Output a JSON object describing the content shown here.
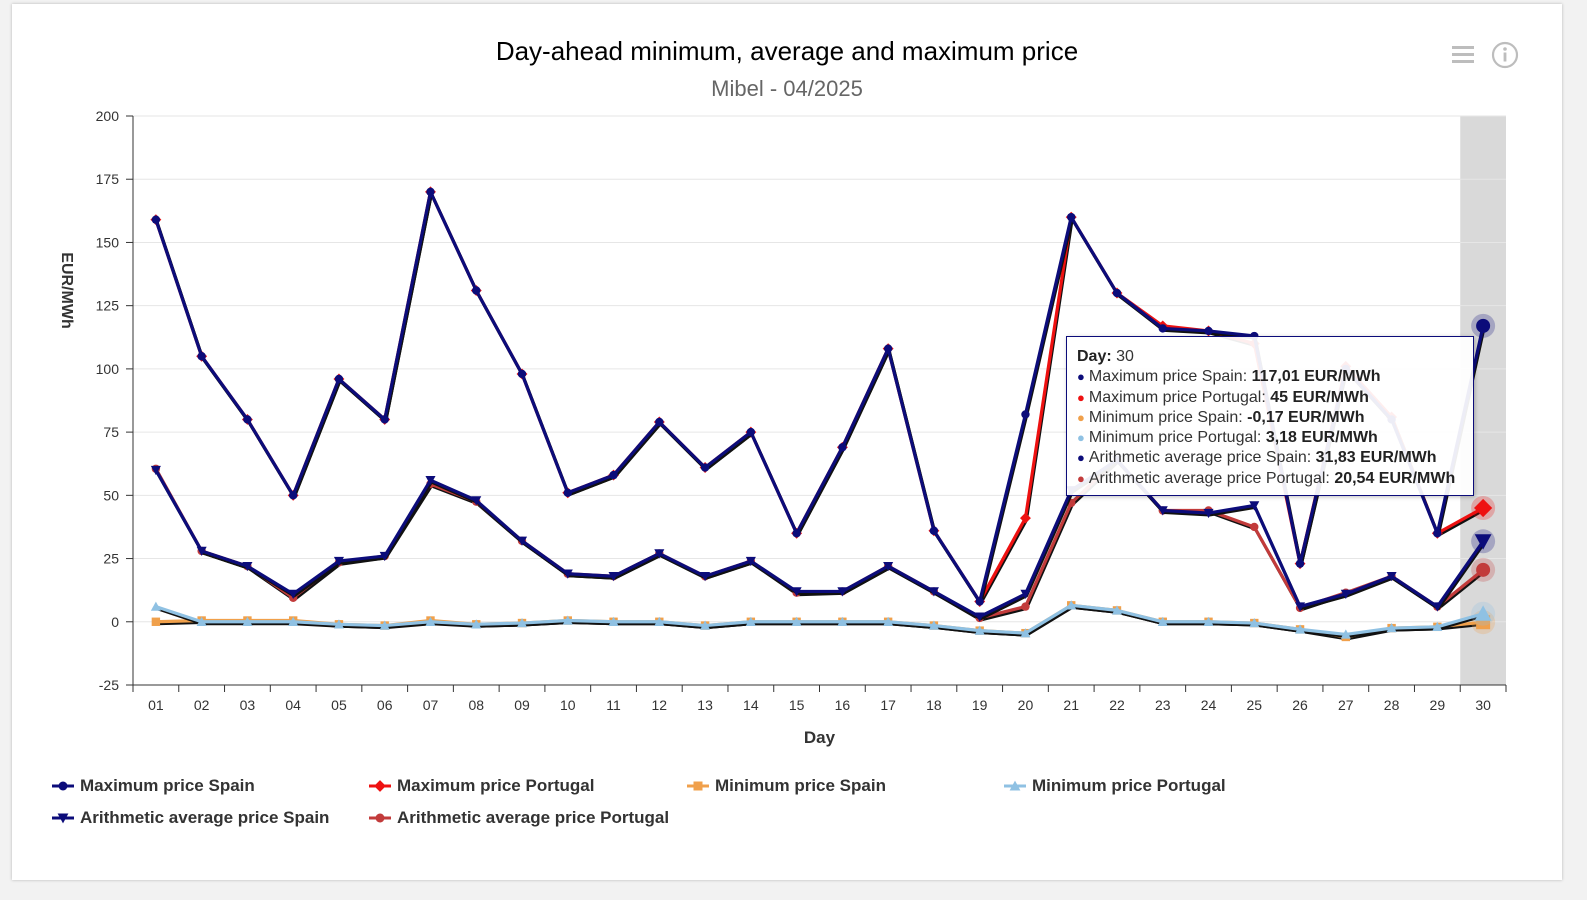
{
  "chart_data": {
    "type": "line",
    "title": "Day-ahead minimum, average and maximum price",
    "subtitle": "Mibel - 04/2025",
    "xlabel": "Day",
    "ylabel": "EUR/MWh",
    "ylim": [
      -25,
      200
    ],
    "yticks": [
      -25,
      0,
      25,
      50,
      75,
      100,
      125,
      150,
      175,
      200
    ],
    "categories": [
      "01",
      "02",
      "03",
      "04",
      "05",
      "06",
      "07",
      "08",
      "09",
      "10",
      "11",
      "12",
      "13",
      "14",
      "15",
      "16",
      "17",
      "18",
      "19",
      "20",
      "21",
      "22",
      "23",
      "24",
      "25",
      "26",
      "27",
      "28",
      "29",
      "30"
    ],
    "grid": true,
    "legend_position": "bottom",
    "highlighted_category": "30",
    "series": [
      {
        "name": "Maximum price Spain",
        "color": "#0c0c7a",
        "marker": "circle",
        "values": [
          159,
          105,
          80,
          50,
          96,
          80,
          170,
          131,
          98,
          51,
          58,
          79,
          61,
          75,
          35,
          69,
          108,
          36,
          8,
          82,
          160,
          130,
          116,
          115,
          113,
          23,
          100,
          80,
          35,
          117.01
        ]
      },
      {
        "name": "Maximum price Portugal",
        "color": "#ee1111",
        "marker": "diamond",
        "values": [
          159,
          105,
          80,
          50,
          96,
          80,
          170,
          131,
          98,
          51,
          58,
          79,
          61,
          75,
          35,
          69,
          108,
          36,
          8,
          41,
          160,
          130,
          117,
          115,
          110,
          23,
          101,
          81,
          35,
          45
        ]
      },
      {
        "name": "Minimum price Spain",
        "color": "#f0a04b",
        "marker": "square",
        "values": [
          0,
          0.5,
          0.5,
          0.5,
          -1,
          -1.5,
          0.5,
          -1,
          -0.5,
          0.5,
          0,
          0,
          -1.5,
          0,
          0,
          0,
          0,
          -1.5,
          -3.5,
          -4.5,
          6.5,
          4.5,
          0,
          0,
          -0.5,
          -3,
          -6,
          -2.5,
          -2,
          -0.17
        ]
      },
      {
        "name": "Minimum price Portugal",
        "color": "#8fc1e3",
        "marker": "triangle",
        "values": [
          6,
          0,
          0,
          0,
          -1,
          -1.5,
          0,
          -1,
          -0.5,
          0.5,
          0,
          0,
          -1.5,
          0,
          0,
          0,
          0,
          -1.5,
          -3.5,
          -4.5,
          6.5,
          4.5,
          0,
          0,
          -0.5,
          -3,
          -5,
          -2.5,
          -2,
          3.18
        ]
      },
      {
        "name": "Arithmetic average price Spain",
        "color": "#0c0c7a",
        "marker": "triangle-down",
        "values": [
          60,
          28,
          22,
          11,
          24,
          26,
          56,
          48,
          32,
          19,
          18,
          27,
          18,
          24,
          12,
          12,
          22,
          12,
          2,
          11,
          52,
          64,
          44,
          43,
          46,
          6,
          11,
          18,
          6,
          31.83
        ]
      },
      {
        "name": "Arithmetic average price Portugal",
        "color": "#c23b3b",
        "marker": "circle",
        "values": [
          60.5,
          28,
          22,
          9.5,
          23.5,
          26,
          54.5,
          47.5,
          32,
          19,
          18,
          27,
          18,
          24,
          11.5,
          12,
          22,
          12,
          1.5,
          6,
          47,
          64,
          44,
          44,
          37.5,
          5.5,
          11.5,
          18,
          6,
          20.54
        ]
      }
    ]
  },
  "tooltip": {
    "day_label": "Day:",
    "day_value": "30",
    "rows": [
      {
        "label": "Maximum price Spain:",
        "value": "117,01 EUR/MWh",
        "color": "#0c0c7a"
      },
      {
        "label": "Maximum price Portugal:",
        "value": "45 EUR/MWh",
        "color": "#ee1111"
      },
      {
        "label": "Minimum price Spain:",
        "value": "-0,17 EUR/MWh",
        "color": "#f0a04b"
      },
      {
        "label": "Minimum price Portugal:",
        "value": "3,18 EUR/MWh",
        "color": "#8fc1e3"
      },
      {
        "label": "Arithmetic average price Spain:",
        "value": "31,83 EUR/MWh",
        "color": "#0c0c7a"
      },
      {
        "label": "Arithmetic average price Portugal:",
        "value": "20,54 EUR/MWh",
        "color": "#c23b3b"
      }
    ]
  },
  "toolbar": {
    "menu_icon": "hamburger-menu-icon",
    "info_icon": "info-icon"
  }
}
